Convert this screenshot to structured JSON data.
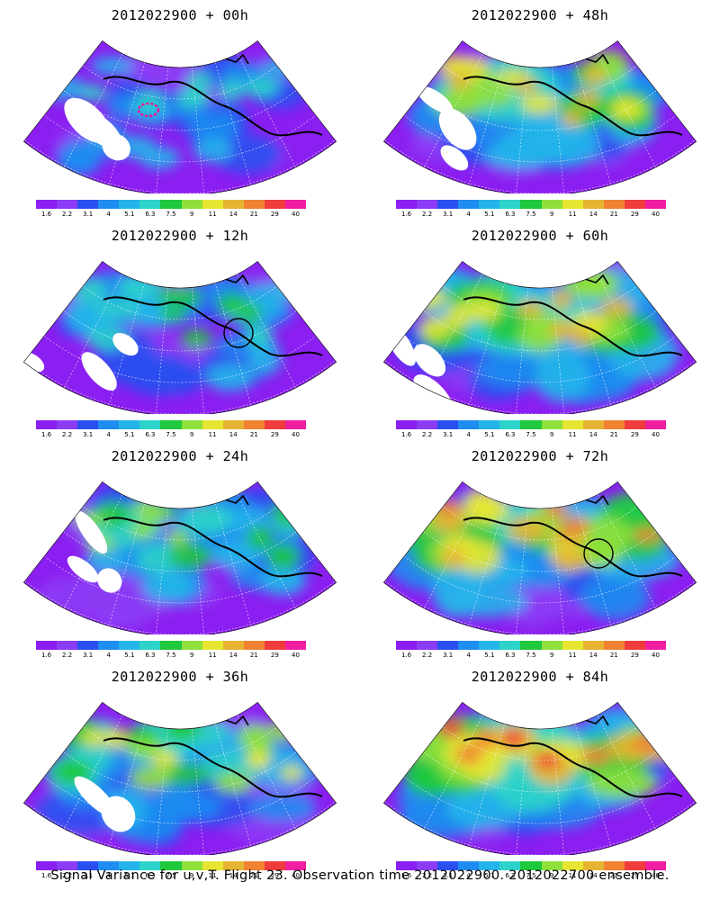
{
  "caption": "Signal Variance for u,v,T. Flight 23. Observation time 2012022900. 2012022700 ensemble.",
  "colorbar": {
    "labels": [
      "1.6",
      "2.2",
      "3.1",
      "4",
      "5.1",
      "6.3",
      "7.5",
      "9",
      "11",
      "14",
      "21",
      "29",
      "40"
    ],
    "colors": [
      "#8b1ef0",
      "#8c3cf5",
      "#2a4ff0",
      "#1e8cf0",
      "#25b4ea",
      "#2bd3c8",
      "#1fc83c",
      "#8fe03a",
      "#e6e632",
      "#e6b432",
      "#f08232",
      "#f03c3c",
      "#f01ea0"
    ]
  },
  "panels": [
    {
      "id": "00h",
      "title": "2012022900 + 00h",
      "level": 0.22,
      "spread": 0.55,
      "white": true,
      "circle": false,
      "pink": true
    },
    {
      "id": "48h",
      "title": "2012022900 + 48h",
      "level": 0.62,
      "spread": 0.75,
      "white": true,
      "circle": false,
      "pink": false
    },
    {
      "id": "12h",
      "title": "2012022900 + 12h",
      "level": 0.35,
      "spread": 0.6,
      "white": true,
      "circle": true,
      "pink": false
    },
    {
      "id": "60h",
      "title": "2012022900 + 60h",
      "level": 0.7,
      "spread": 0.8,
      "white": true,
      "circle": false,
      "pink": false
    },
    {
      "id": "24h",
      "title": "2012022900 + 24h",
      "level": 0.45,
      "spread": 0.65,
      "white": true,
      "circle": false,
      "pink": false
    },
    {
      "id": "72h",
      "title": "2012022900 + 72h",
      "level": 0.78,
      "spread": 0.85,
      "white": false,
      "circle": true,
      "pink": false
    },
    {
      "id": "36h",
      "title": "2012022900 + 36h",
      "level": 0.55,
      "spread": 0.7,
      "white": true,
      "circle": false,
      "pink": false
    },
    {
      "id": "84h",
      "title": "2012022900 + 84h",
      "level": 0.85,
      "spread": 0.9,
      "white": false,
      "circle": false,
      "pink": false
    }
  ]
}
